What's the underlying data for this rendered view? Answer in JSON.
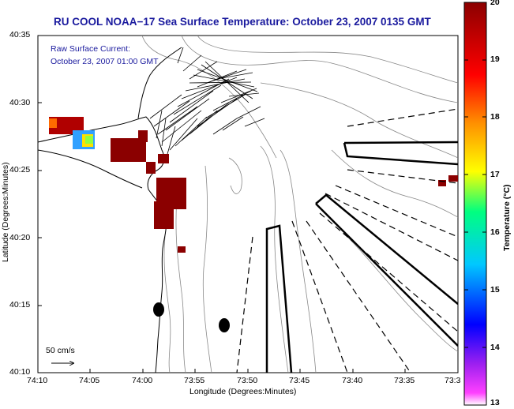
{
  "title": "RU COOL  NOAA−17  Sea Surface Temperature:  October 23, 2007 0135 GMT",
  "current_label_line1": "Raw Surface Current:",
  "current_label_line2": "October 23, 2007 01:00 GMT",
  "scale_label": "50 cm/s",
  "x_axis": {
    "label": "Longitude (Degrees:Minutes)",
    "ticks": [
      "74:10",
      "74:05",
      "74:00",
      "73:55",
      "73:50",
      "73:45",
      "73:40",
      "73:35",
      "73:3"
    ]
  },
  "y_axis": {
    "label": "Latitude (Degrees:Minutes)",
    "ticks": [
      "40:35",
      "40:30",
      "40:25",
      "40:20",
      "40:15",
      "40:10"
    ]
  },
  "colorbar": {
    "label": "Temperature (°C)",
    "ticks": [
      "20",
      "19",
      "18",
      "17",
      "16",
      "15",
      "14",
      "13"
    ],
    "range": [
      13,
      20
    ],
    "colors": [
      "#ff00ff",
      "#0000ff",
      "#00ffff",
      "#00ff00",
      "#ffff00",
      "#ff8000",
      "#ff0000",
      "#8b0000"
    ]
  }
}
